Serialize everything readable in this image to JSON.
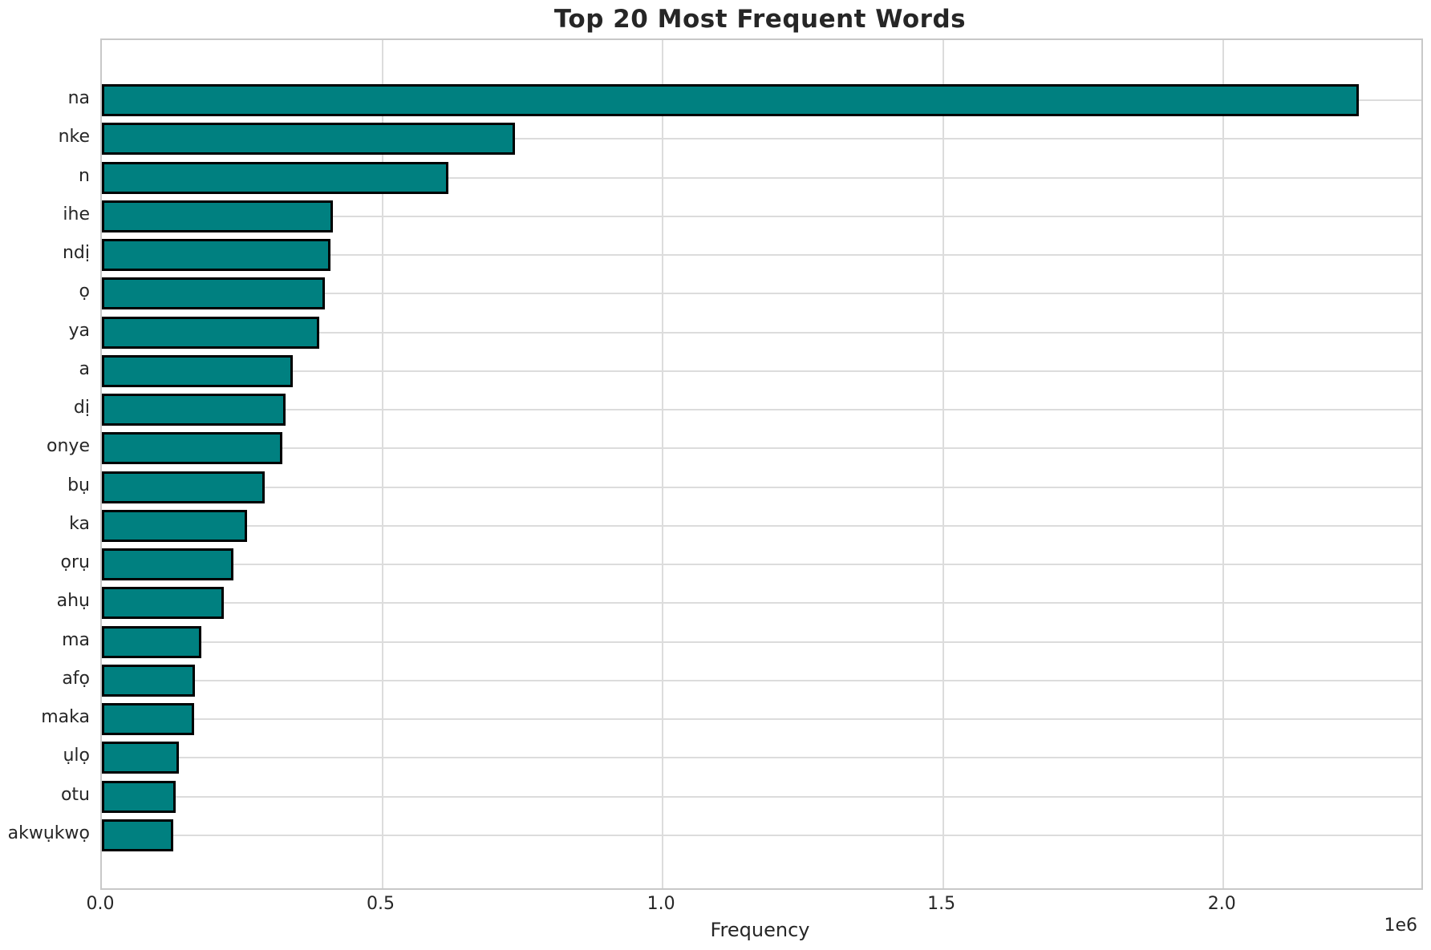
{
  "figure": {
    "background_color": "#ffffff"
  },
  "chart_data": {
    "type": "bar",
    "orientation": "horizontal",
    "title": "Top 20 Most Frequent Words",
    "xlabel": "Frequency",
    "ylabel": "",
    "offset_text": "1e6",
    "categories": [
      "na",
      "nke",
      "n",
      "ihe",
      "ndị",
      "ọ",
      "ya",
      "a",
      "dị",
      "onye",
      "bụ",
      "ka",
      "ọrụ",
      "ahụ",
      "ma",
      "afọ",
      "maka",
      "ụlọ",
      "otu",
      "akwụkwọ"
    ],
    "values": [
      2242000,
      737000,
      618000,
      412000,
      408000,
      397000,
      387000,
      341000,
      327000,
      322000,
      291000,
      259000,
      234000,
      218000,
      178000,
      166000,
      165000,
      137000,
      132000,
      127000
    ],
    "x_ticks": [
      0,
      500000,
      1000000,
      1500000,
      2000000
    ],
    "x_tick_labels": [
      "0.0",
      "0.5",
      "1.0",
      "1.5",
      "2.0"
    ],
    "xlim": [
      0,
      2353000
    ],
    "grid": true,
    "legend": false,
    "bar_color": "#008080",
    "bar_edge_color": "#000000",
    "grid_color": "#dcdcdc",
    "spine_color": "#c8c8c8",
    "text_color": "#262626"
  }
}
